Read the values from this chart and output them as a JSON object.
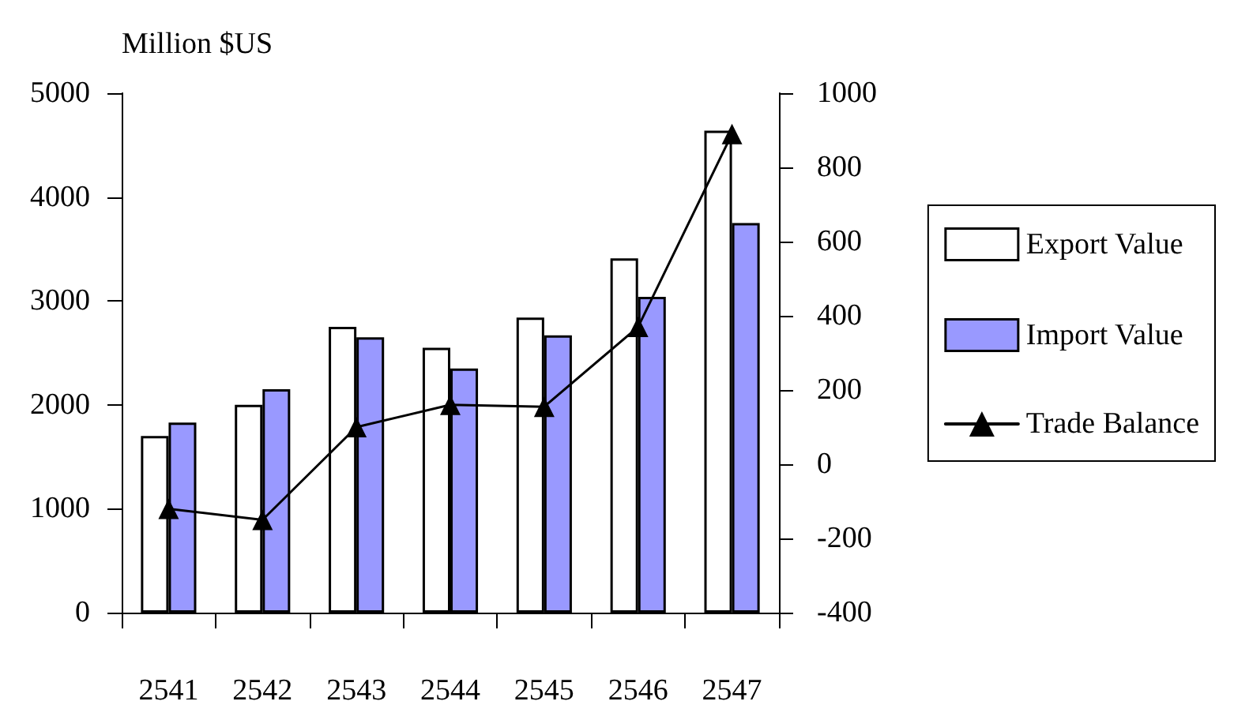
{
  "chart_data": {
    "type": "bar",
    "ylabel": "Million $US",
    "categories": [
      "2541",
      "2542",
      "2543",
      "2544",
      "2545",
      "2546",
      "2547"
    ],
    "series": [
      {
        "name": "Export Value",
        "color": "#ffffff",
        "values": [
          1700,
          2000,
          2750,
          2550,
          2840,
          3410,
          4640
        ]
      },
      {
        "name": "Import Value",
        "color": "#9999ff",
        "values": [
          1830,
          2150,
          2650,
          2350,
          2670,
          3040,
          3750
        ]
      },
      {
        "name": "Trade Balance",
        "type": "line",
        "axis": "y2",
        "color": "#000000",
        "values": [
          -120,
          -150,
          100,
          160,
          155,
          370,
          890
        ]
      }
    ],
    "ylim": [
      0,
      5000
    ],
    "yticks": [
      0,
      1000,
      2000,
      3000,
      4000,
      5000
    ],
    "y2lim": [
      -400,
      1000
    ],
    "y2ticks": [
      -400,
      -200,
      0,
      200,
      400,
      600,
      800,
      1000
    ],
    "marker": "triangle",
    "grid": false,
    "legend": "right"
  }
}
